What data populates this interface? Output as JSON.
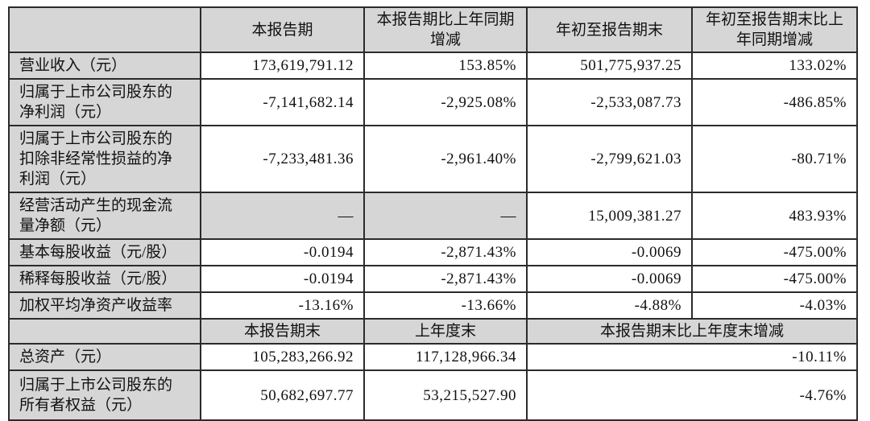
{
  "colors": {
    "header_bg": "#d6d6d6",
    "border": "#2b2b2b",
    "cell_bg": "#ffffff"
  },
  "table": {
    "header_top": {
      "col1": "",
      "col2": "本报告期",
      "col3": "本报告期比上年同期增减",
      "col4": "年初至报告期末",
      "col5": "年初至报告期末比上年同期增减"
    },
    "rows_top": [
      {
        "label": "营业收入（元）",
        "v1": "173,619,791.12",
        "v2": "153.85%",
        "v3": "501,775,937.25",
        "v4": "133.02%"
      },
      {
        "label": "归属于上市公司股东的净利润（元）",
        "v1": "-7,141,682.14",
        "v2": "-2,925.08%",
        "v3": "-2,533,087.73",
        "v4": "-486.85%"
      },
      {
        "label": "归属于上市公司股东的扣除非经常性损益的净利润（元）",
        "v1": "-7,233,481.36",
        "v2": "-2,961.40%",
        "v3": "-2,799,621.03",
        "v4": "-80.71%"
      },
      {
        "label": "经营活动产生的现金流量净额（元）",
        "v1": "—",
        "v2": "—",
        "v3": "15,009,381.27",
        "v4": "483.93%"
      },
      {
        "label": "基本每股收益（元/股）",
        "v1": "-0.0194",
        "v2": "-2,871.43%",
        "v3": "-0.0069",
        "v4": "-475.00%"
      },
      {
        "label": "稀释每股收益（元/股）",
        "v1": "-0.0194",
        "v2": "-2,871.43%",
        "v3": "-0.0069",
        "v4": "-475.00%"
      },
      {
        "label": "加权平均净资产收益率",
        "v1": "-13.16%",
        "v2": "-13.66%",
        "v3": "-4.88%",
        "v4": "-4.03%"
      }
    ],
    "header_bottom": {
      "col1": "",
      "col2": "本报告期末",
      "col3": "上年度末",
      "col45": "本报告期末比上年度末增减"
    },
    "rows_bottom": [
      {
        "label": "总资产（元）",
        "v1": "105,283,266.92",
        "v2": "117,128,966.34",
        "v3": "-10.11%"
      },
      {
        "label": "归属于上市公司股东的所有者权益（元）",
        "v1": "50,682,697.77",
        "v2": "53,215,527.90",
        "v3": "-4.76%"
      }
    ]
  }
}
